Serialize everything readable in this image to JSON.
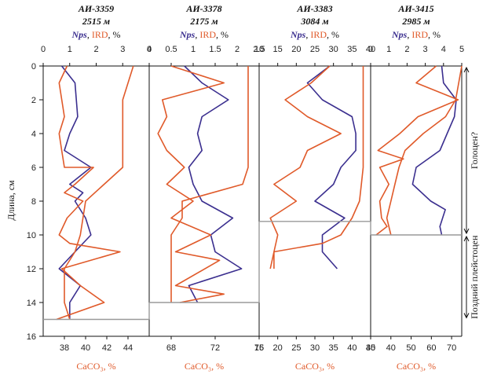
{
  "chart_data": {
    "type": "line",
    "ylabel": "Длина, см",
    "y_axis": {
      "range": [
        0,
        16
      ],
      "ticks": [
        0,
        2,
        4,
        6,
        8,
        10,
        12,
        14,
        16
      ],
      "inverted": true
    },
    "colors": {
      "nps": "#3b2f8f",
      "ird": "#e05a2a",
      "caco3": "#e05a2a",
      "correlation": "#9a9a9a"
    },
    "legend_parts": {
      "nps": "Nps",
      "sep": ", ",
      "ird": "IRD",
      "pct": ", %"
    },
    "bottom_label": "CaCO₃, %",
    "intervals": [
      {
        "label": "Голоцен?",
        "from": 0,
        "to": 10
      },
      {
        "label": "Поздний плейстоцен",
        "from": 10,
        "to": 15
      }
    ],
    "panels": [
      {
        "core": "АИ-3359",
        "depth": "2515 м",
        "top_axis": {
          "range": [
            0,
            4
          ],
          "ticks": [
            0,
            1,
            2,
            3,
            4
          ]
        },
        "bottom_axis": {
          "range": [
            36,
            46
          ],
          "ticks": [
            38,
            40,
            42,
            44
          ]
        },
        "base_depth": 15,
        "series": [
          {
            "key": "nps",
            "points": [
              [
                0.7,
                0
              ],
              [
                1.2,
                1
              ],
              [
                1.3,
                3
              ],
              [
                1.0,
                4
              ],
              [
                0.8,
                5
              ],
              [
                1.8,
                6
              ],
              [
                1.4,
                6.5
              ],
              [
                1.0,
                7
              ],
              [
                1.5,
                7.5
              ],
              [
                1.2,
                8
              ],
              [
                1.6,
                9
              ],
              [
                1.8,
                10
              ],
              [
                1.2,
                11
              ],
              [
                0.6,
                12
              ],
              [
                1.4,
                13
              ],
              [
                1.0,
                14
              ],
              [
                1.0,
                15
              ]
            ]
          },
          {
            "key": "ird",
            "points": [
              [
                0.9,
                0
              ],
              [
                0.6,
                1
              ],
              [
                0.8,
                3
              ],
              [
                0.6,
                4
              ],
              [
                0.7,
                5
              ],
              [
                0.8,
                6
              ],
              [
                1.9,
                6
              ],
              [
                1.2,
                7
              ],
              [
                0.8,
                7.5
              ],
              [
                1.5,
                8
              ],
              [
                0.9,
                9
              ],
              [
                0.6,
                10
              ],
              [
                1.0,
                10.5
              ],
              [
                2.9,
                11
              ],
              [
                0.7,
                12
              ],
              [
                1.4,
                13
              ],
              [
                2.3,
                14
              ],
              [
                0.5,
                15
              ]
            ]
          },
          {
            "key": "caco3",
            "points": [
              [
                44.5,
                0
              ],
              [
                43.5,
                2
              ],
              [
                43.5,
                4
              ],
              [
                43.5,
                6
              ],
              [
                40,
                8
              ],
              [
                39.5,
                10
              ],
              [
                39,
                11
              ],
              [
                38,
                12
              ],
              [
                38,
                14
              ],
              [
                38.5,
                15
              ]
            ]
          }
        ]
      },
      {
        "core": "АИ-3378",
        "depth": "2175 м",
        "top_axis": {
          "range": [
            0,
            2.5
          ],
          "ticks": [
            0,
            0.5,
            1,
            1.5,
            2,
            2.5
          ]
        },
        "bottom_axis": {
          "range": [
            66,
            76
          ],
          "ticks": [
            68,
            72,
            76
          ]
        },
        "base_depth": 14,
        "series": [
          {
            "key": "nps",
            "points": [
              [
                0.8,
                0
              ],
              [
                1.2,
                1
              ],
              [
                1.8,
                2
              ],
              [
                1.2,
                3
              ],
              [
                1.1,
                4
              ],
              [
                1.2,
                5
              ],
              [
                0.9,
                6
              ],
              [
                1.0,
                7
              ],
              [
                1.2,
                8
              ],
              [
                1.9,
                9
              ],
              [
                1.4,
                10
              ],
              [
                1.5,
                11
              ],
              [
                2.1,
                12
              ],
              [
                0.9,
                13
              ],
              [
                1.1,
                14
              ]
            ]
          },
          {
            "key": "ird",
            "points": [
              [
                0.5,
                0
              ],
              [
                1.7,
                1
              ],
              [
                0.3,
                2
              ],
              [
                0.4,
                3
              ],
              [
                0.2,
                4
              ],
              [
                0.4,
                5
              ],
              [
                0.8,
                6
              ],
              [
                0.4,
                7
              ],
              [
                1.0,
                8
              ],
              [
                0.5,
                9
              ],
              [
                1.4,
                10
              ],
              [
                0.6,
                11
              ],
              [
                1.6,
                11.5
              ],
              [
                0.6,
                13
              ],
              [
                1.7,
                13.5
              ],
              [
                0.7,
                14
              ]
            ]
          },
          {
            "key": "caco3",
            "points": [
              [
                75,
                0
              ],
              [
                75,
                2
              ],
              [
                75,
                4
              ],
              [
                75,
                6
              ],
              [
                74.5,
                7
              ],
              [
                69,
                8
              ],
              [
                69,
                9
              ],
              [
                68,
                10
              ],
              [
                68,
                11
              ],
              [
                68,
                13
              ],
              [
                68,
                14
              ]
            ]
          }
        ]
      },
      {
        "core": "АИ-3383",
        "depth": "3084 м",
        "top_axis": {
          "range": [
            10,
            40
          ],
          "ticks": [
            10,
            15,
            20,
            25,
            30,
            35,
            40
          ]
        },
        "bottom_axis": {
          "range": [
            15,
            45
          ],
          "ticks": [
            15,
            20,
            25,
            30,
            35,
            40,
            45
          ]
        },
        "base_depth": 9.2,
        "series": [
          {
            "key": "nps",
            "points": [
              [
                29,
                0
              ],
              [
                23,
                1
              ],
              [
                27,
                2
              ],
              [
                35,
                3
              ],
              [
                36,
                4
              ],
              [
                36,
                5
              ],
              [
                32,
                6
              ],
              [
                30,
                7
              ],
              [
                25,
                8
              ],
              [
                33,
                9
              ],
              [
                27,
                10
              ],
              [
                27,
                11
              ],
              [
                31,
                12
              ]
            ]
          },
          {
            "key": "ird",
            "points": [
              [
                29,
                0
              ],
              [
                24,
                1
              ],
              [
                17,
                2
              ],
              [
                23,
                3
              ],
              [
                32,
                4
              ],
              [
                23,
                5
              ],
              [
                21,
                6
              ],
              [
                14,
                7
              ],
              [
                20,
                8
              ],
              [
                13,
                9
              ],
              [
                15,
                10
              ],
              [
                14,
                11
              ],
              [
                14,
                12
              ]
            ]
          },
          {
            "key": "caco3",
            "points": [
              [
                43,
                0
              ],
              [
                43,
                2
              ],
              [
                43,
                4
              ],
              [
                43,
                6
              ],
              [
                42.5,
                7
              ],
              [
                42,
                8
              ],
              [
                40,
                9
              ],
              [
                37,
                10
              ],
              [
                32,
                10.5
              ],
              [
                19,
                11
              ],
              [
                18,
                12
              ]
            ]
          }
        ]
      },
      {
        "core": "АИ-3415",
        "depth": "2985 м",
        "top_axis": {
          "range": [
            0,
            5
          ],
          "ticks": [
            0,
            1,
            2,
            3,
            4,
            5
          ]
        },
        "bottom_axis": {
          "range": [
            30,
            75
          ],
          "ticks": [
            30,
            40,
            50,
            60,
            70
          ]
        },
        "base_depth": 10,
        "series": [
          {
            "key": "nps",
            "points": [
              [
                3.9,
                0
              ],
              [
                4.0,
                1
              ],
              [
                4.7,
                2
              ],
              [
                4.6,
                3
              ],
              [
                4.2,
                4
              ],
              [
                3.8,
                5
              ],
              [
                2.5,
                6
              ],
              [
                2.3,
                7
              ],
              [
                3.3,
                8
              ],
              [
                4.1,
                8.5
              ],
              [
                3.8,
                9.5
              ],
              [
                3.9,
                10
              ]
            ]
          },
          {
            "key": "ird",
            "points": [
              [
                3.6,
                0
              ],
              [
                2.5,
                1
              ],
              [
                4.8,
                2
              ],
              [
                2.6,
                3
              ],
              [
                1.6,
                4
              ],
              [
                0.4,
                5
              ],
              [
                1.8,
                5.5
              ],
              [
                0.5,
                6
              ],
              [
                1.0,
                7
              ],
              [
                0.5,
                8
              ],
              [
                0.6,
                9
              ],
              [
                0.9,
                9.5
              ],
              [
                0.3,
                10
              ]
            ]
          },
          {
            "key": "caco3",
            "points": [
              [
                75,
                0
              ],
              [
                72,
                2
              ],
              [
                67,
                3
              ],
              [
                56,
                4
              ],
              [
                47,
                5
              ],
              [
                44,
                6
              ],
              [
                42,
                7
              ],
              [
                40,
                8
              ],
              [
                38,
                9
              ],
              [
                40,
                10
              ]
            ]
          }
        ]
      }
    ]
  }
}
